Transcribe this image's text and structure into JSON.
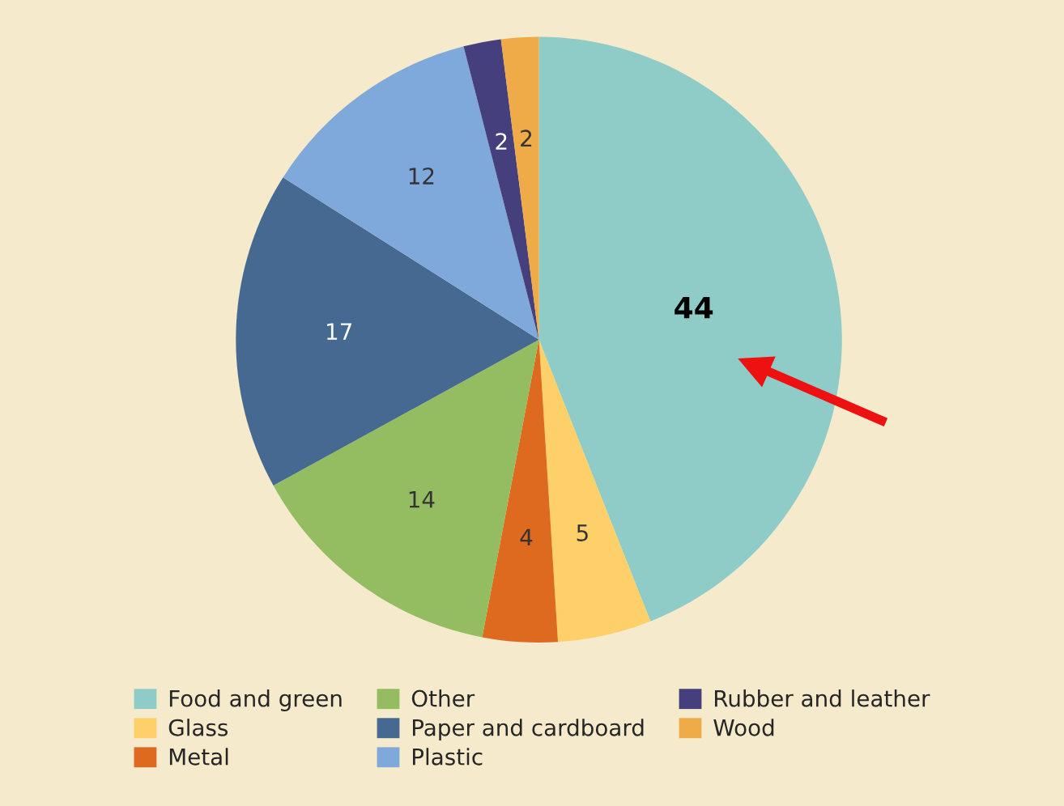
{
  "chart_data": {
    "type": "pie",
    "categories": [
      "Food and green",
      "Glass",
      "Metal",
      "Other",
      "Paper and cardboard",
      "Plastic",
      "Rubber and leather",
      "Wood"
    ],
    "values": [
      44,
      5,
      4,
      14,
      17,
      12,
      2,
      2
    ],
    "colors": [
      "#8fccc8",
      "#fdd06a",
      "#dd6a1e",
      "#94bc60",
      "#456990",
      "#7fa9db",
      "#453f7e",
      "#efab47"
    ],
    "data_labels": true,
    "legend": "bottom"
  }
}
